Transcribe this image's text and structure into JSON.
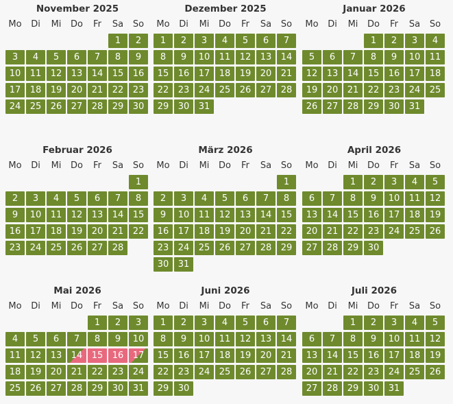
{
  "weekdays": [
    "Mo",
    "Di",
    "Mi",
    "Do",
    "Fr",
    "Sa",
    "So"
  ],
  "months": [
    {
      "title": "November 2025",
      "offset": 5,
      "days": 30
    },
    {
      "title": "Dezember 2025",
      "offset": 0,
      "days": 31
    },
    {
      "title": "Januar 2026",
      "offset": 3,
      "days": 31
    },
    {
      "title": "Februar 2026",
      "offset": 6,
      "days": 28
    },
    {
      "title": "März 2026",
      "offset": 6,
      "days": 31
    },
    {
      "title": "April 2026",
      "offset": 2,
      "days": 30
    },
    {
      "title": "Mai 2026",
      "offset": 4,
      "days": 31,
      "arrival": [
        14
      ],
      "booked": [
        15,
        16
      ],
      "departure": [
        17
      ]
    },
    {
      "title": "Juni 2026",
      "offset": 0,
      "days": 30
    },
    {
      "title": "Juli 2026",
      "offset": 2,
      "days": 31
    }
  ],
  "colors": {
    "available": "#6e8a2d",
    "booked": "#e8697d"
  }
}
